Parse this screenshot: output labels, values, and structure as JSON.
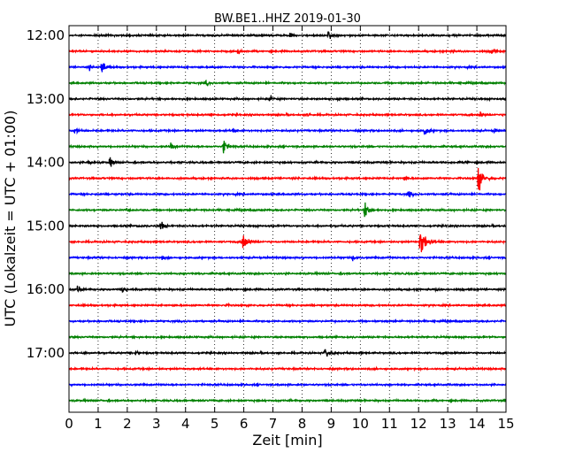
{
  "chart_data": {
    "type": "line",
    "title": "BW.BE1..HHZ 2019-01-30",
    "xlabel": "Zeit  [min]",
    "ylabel": "UTC (Lokalzeit = UTC + 01:00)",
    "xlim": [
      0,
      15
    ],
    "x_ticks": [
      "0",
      "1",
      "2",
      "3",
      "4",
      "5",
      "6",
      "7",
      "8",
      "9",
      "10",
      "11",
      "12",
      "13",
      "14",
      "15"
    ],
    "y_ticks": [
      {
        "row": 0,
        "label": "12:00"
      },
      {
        "row": 4,
        "label": "13:00"
      },
      {
        "row": 8,
        "label": "14:00"
      },
      {
        "row": 12,
        "label": "15:00"
      },
      {
        "row": 16,
        "label": "16:00"
      },
      {
        "row": 20,
        "label": "17:00"
      }
    ],
    "grid": {
      "vertical_dotted": true,
      "horizontal": false
    },
    "trace_colors": [
      "#000000",
      "#ff0000",
      "#0000ff",
      "#008000"
    ],
    "row_count": 24,
    "series": [
      {
        "start": "12:00",
        "events": [
          {
            "t": 7.6,
            "amp": 0.25
          },
          {
            "t": 8.9,
            "amp": 0.6
          }
        ]
      },
      {
        "start": "12:15",
        "events": [
          {
            "t": 5.8,
            "amp": 0.3
          },
          {
            "t": 13.1,
            "amp": 0.2
          },
          {
            "t": 14.5,
            "amp": 0.3
          }
        ]
      },
      {
        "start": "12:30",
        "events": [
          {
            "t": 0.7,
            "amp": 0.3
          },
          {
            "t": 1.1,
            "amp": 1.0
          },
          {
            "t": 4.9,
            "amp": 0.2
          }
        ]
      },
      {
        "start": "12:45",
        "events": [
          {
            "t": 4.7,
            "amp": 0.3
          }
        ]
      },
      {
        "start": "13:00",
        "events": [
          {
            "t": 6.9,
            "amp": 0.35
          },
          {
            "t": 9.2,
            "amp": 0.25
          }
        ]
      },
      {
        "start": "13:15",
        "events": [
          {
            "t": 4.9,
            "amp": 0.2
          },
          {
            "t": 8.2,
            "amp": 0.2
          },
          {
            "t": 14.1,
            "amp": 0.4
          }
        ]
      },
      {
        "start": "13:30",
        "events": [
          {
            "t": 0.2,
            "amp": 0.5
          },
          {
            "t": 5.6,
            "amp": 0.3
          },
          {
            "t": 12.2,
            "amp": 0.6
          },
          {
            "t": 14.6,
            "amp": 0.3
          }
        ]
      },
      {
        "start": "13:45",
        "events": [
          {
            "t": 3.5,
            "amp": 0.4
          },
          {
            "t": 5.3,
            "amp": 0.9
          }
        ]
      },
      {
        "start": "14:00",
        "events": [
          {
            "t": 0.65,
            "amp": 0.4
          },
          {
            "t": 1.4,
            "amp": 0.5
          },
          {
            "t": 13.6,
            "amp": 0.3
          }
        ]
      },
      {
        "start": "14:15",
        "events": [
          {
            "t": 11.5,
            "amp": 0.25
          },
          {
            "t": 14.05,
            "amp": 1.4
          }
        ]
      },
      {
        "start": "14:30",
        "events": [
          {
            "t": 11.65,
            "amp": 0.45
          }
        ]
      },
      {
        "start": "14:45",
        "events": [
          {
            "t": 2.0,
            "amp": 0.2
          },
          {
            "t": 10.15,
            "amp": 0.9
          }
        ]
      },
      {
        "start": "15:00",
        "events": [
          {
            "t": 2.4,
            "amp": 0.2
          },
          {
            "t": 3.15,
            "amp": 0.6
          }
        ]
      },
      {
        "start": "15:15",
        "events": [
          {
            "t": 5.95,
            "amp": 1.3
          },
          {
            "t": 12.05,
            "amp": 1.8
          }
        ]
      },
      {
        "start": "15:30",
        "events": [
          {
            "t": 3.2,
            "amp": 0.3
          },
          {
            "t": 9.75,
            "amp": 0.35
          }
        ]
      },
      {
        "start": "15:45",
        "events": []
      },
      {
        "start": "16:00",
        "events": [
          {
            "t": 0.3,
            "amp": 0.5
          },
          {
            "t": 1.85,
            "amp": 0.3
          },
          {
            "t": 12.6,
            "amp": 0.2
          }
        ]
      },
      {
        "start": "16:15",
        "events": [
          {
            "t": 5.4,
            "amp": 0.15
          }
        ]
      },
      {
        "start": "16:30",
        "events": []
      },
      {
        "start": "16:45",
        "events": []
      },
      {
        "start": "17:00",
        "events": [
          {
            "t": 0.5,
            "amp": 0.15
          },
          {
            "t": 2.3,
            "amp": 0.2
          },
          {
            "t": 8.8,
            "amp": 0.8
          }
        ]
      },
      {
        "start": "17:15",
        "events": []
      },
      {
        "start": "17:30",
        "events": []
      },
      {
        "start": "17:45",
        "events": []
      }
    ]
  }
}
